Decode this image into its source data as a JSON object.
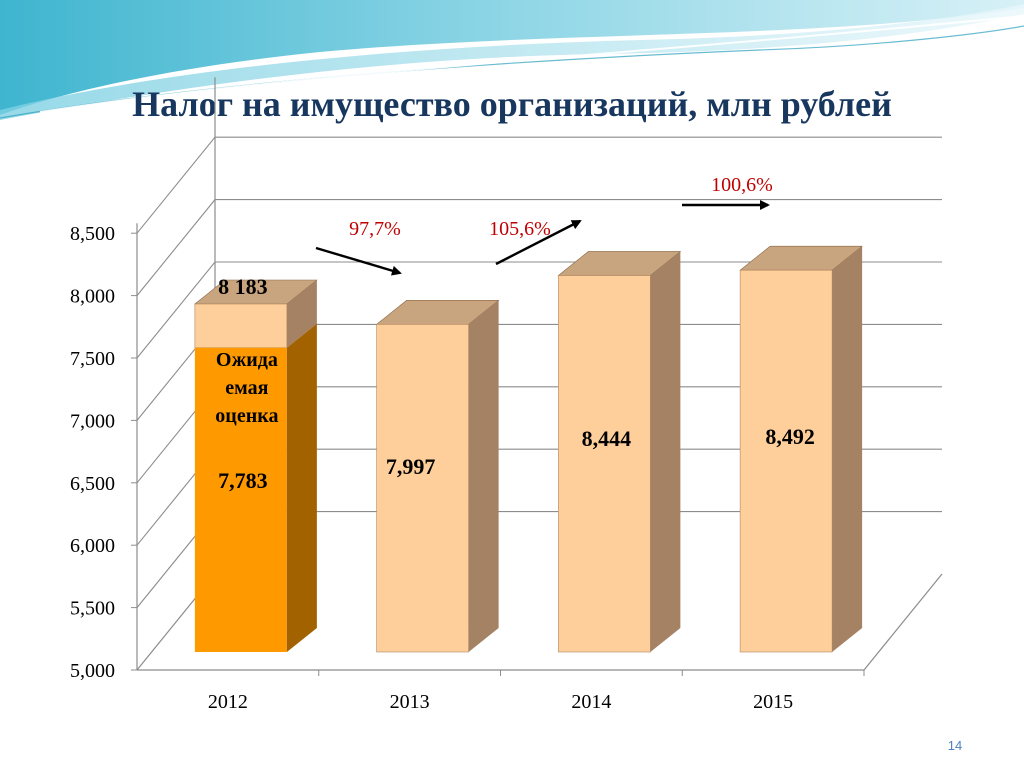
{
  "slide": {
    "title": "Налог на имущество организаций, млн рублей",
    "page_number": "14"
  },
  "colors": {
    "title": "#17375e",
    "bar_light": "#fecf9a",
    "bar_light_side": "#a58263",
    "bar_light_top": "#c9a57f",
    "bar_orange": "#fe9a00",
    "bar_orange_side": "#a36200",
    "growth_label": "#c00000",
    "grid": "#8c8c8c"
  },
  "chart_data": {
    "type": "bar",
    "categories": [
      "2012",
      "2013",
      "2014",
      "2015"
    ],
    "values": [
      8183,
      7997,
      8444,
      8492
    ],
    "value_labels": [
      "8 183",
      "7,997",
      "8,444",
      "8,492"
    ],
    "stacked_first": {
      "actual_value": 7783,
      "actual_label": "7,783",
      "annotation_lines": [
        "Ожида",
        "емая",
        "оценка"
      ]
    },
    "growth": [
      {
        "from": "2012",
        "to": "2013",
        "label": "97,7%"
      },
      {
        "from": "2013",
        "to": "2014",
        "label": "105,6%"
      },
      {
        "from": "2014",
        "to": "2015",
        "label": "100,6%"
      }
    ],
    "ylim": [
      5000,
      8500
    ],
    "yticks": [
      "5,000",
      "5,500",
      "6,000",
      "6,500",
      "7,000",
      "7,500",
      "8,000",
      "8,500"
    ],
    "grid": true,
    "style": "3d"
  }
}
